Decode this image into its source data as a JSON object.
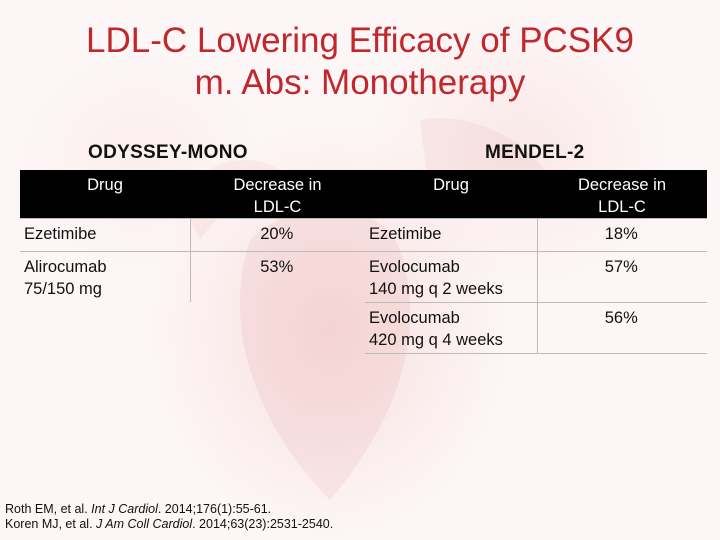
{
  "title": {
    "line1": "LDL-C Lowering Efficacy of PCSK9",
    "line2": "m. Abs: Monotherapy"
  },
  "left_table": {
    "heading": "ODYSSEY-MONO",
    "col_drug": "Drug",
    "col_decrease_line1": "Decrease in",
    "col_decrease_line2": "LDL-C",
    "rows": [
      {
        "drug_line1": "Ezetimibe",
        "drug_line2": "",
        "value": "20%"
      },
      {
        "drug_line1": "Alirocumab",
        "drug_line2": "75/150 mg",
        "value": "53%"
      }
    ]
  },
  "right_table": {
    "heading": "MENDEL-2",
    "col_drug": "Drug",
    "col_decrease_line1": "Decrease in",
    "col_decrease_line2": "LDL-C",
    "rows": [
      {
        "drug_line1": "Ezetimibe",
        "drug_line2": "",
        "value": "18%"
      },
      {
        "drug_line1": "Evolocumab",
        "drug_line2": "140 mg q 2 weeks",
        "value": "57%"
      },
      {
        "drug_line1": "Evolocumab",
        "drug_line2": "420 mg q 4 weeks",
        "value": "56%"
      }
    ]
  },
  "references": {
    "ref1_authors": "Roth EM, et al. ",
    "ref1_journal": "Int J Cardiol",
    "ref1_details": ". 2014;176(1):55-61.",
    "ref2_authors": "Koren MJ, et al. ",
    "ref2_journal": "J Am Coll Cardiol",
    "ref2_details": ". 2014;63(23):2531-2540."
  },
  "colors": {
    "title": "#c0282d",
    "header_bg": "#000000"
  }
}
